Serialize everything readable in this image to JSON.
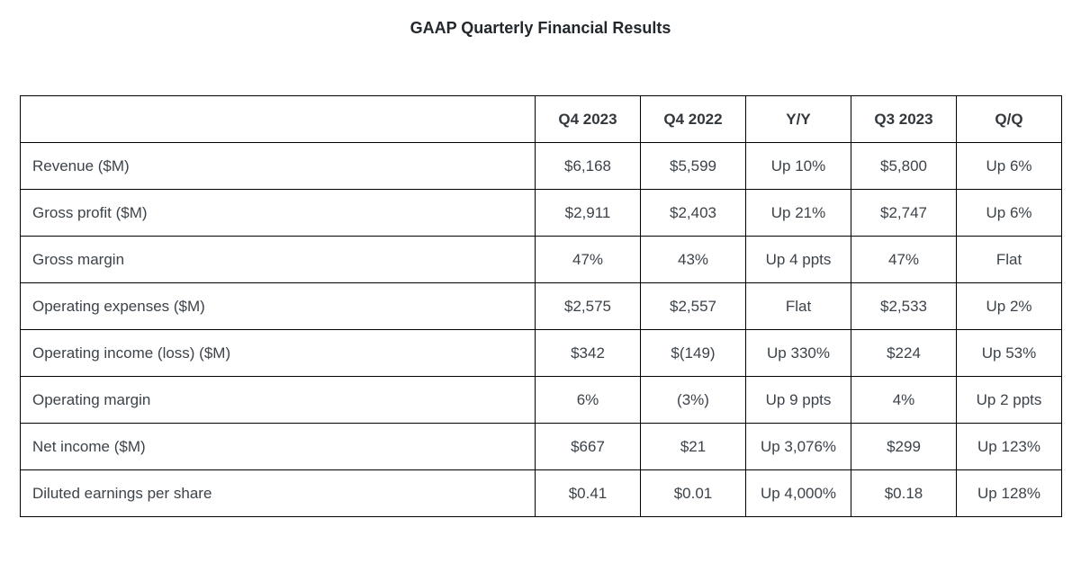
{
  "chart_data": {
    "type": "table",
    "title": "GAAP Quarterly Financial Results",
    "columns": [
      "",
      "Q4 2023",
      "Q4 2022",
      "Y/Y",
      "Q3 2023",
      "Q/Q"
    ],
    "rows": [
      {
        "label": "Revenue ($M)",
        "values": [
          "$6,168",
          "$5,599",
          "Up 10%",
          "$5,800",
          "Up 6%"
        ]
      },
      {
        "label": "Gross profit ($M)",
        "values": [
          "$2,911",
          "$2,403",
          "Up 21%",
          "$2,747",
          "Up 6%"
        ]
      },
      {
        "label": "Gross margin",
        "values": [
          "47%",
          "43%",
          "Up 4 ppts",
          "47%",
          "Flat"
        ]
      },
      {
        "label": "Operating expenses ($M)",
        "values": [
          "$2,575",
          "$2,557",
          "Flat",
          "$2,533",
          "Up 2%"
        ]
      },
      {
        "label": "Operating income (loss) ($M)",
        "values": [
          "$342",
          "$(149)",
          "Up 330%",
          "$224",
          "Up 53%"
        ]
      },
      {
        "label": "Operating margin",
        "values": [
          "6%",
          "(3%)",
          "Up 9 ppts",
          "4%",
          "Up 2 ppts"
        ]
      },
      {
        "label": "Net income ($M)",
        "values": [
          "$667",
          "$21",
          "Up 3,076%",
          "$299",
          "Up 123%"
        ]
      },
      {
        "label": "Diluted earnings per share",
        "values": [
          "$0.41",
          "$0.01",
          "Up 4,000%",
          "$0.18",
          "Up 128%"
        ]
      }
    ]
  },
  "colors": {
    "text": "#3c434a",
    "title_text": "#23282d",
    "border": "#000000",
    "background": "#ffffff"
  }
}
